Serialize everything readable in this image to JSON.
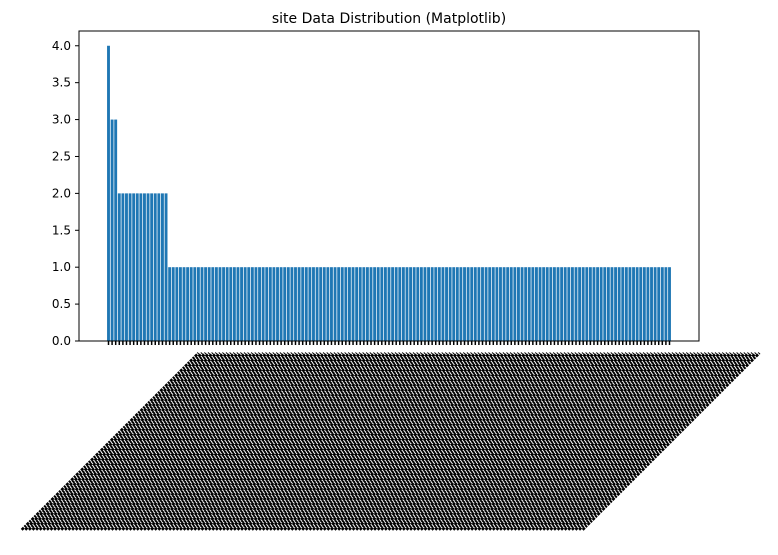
{
  "chart_data": {
    "type": "bar",
    "title": "site Data Distribution (Matplotlib)",
    "xlabel": "",
    "ylabel": "",
    "ylim": [
      0,
      4.2
    ],
    "yticks": [
      "0.0",
      "0.5",
      "1.0",
      "1.5",
      "2.0",
      "2.5",
      "3.0",
      "3.5",
      "4.0"
    ],
    "grid": false,
    "bar_color": "#1f77b4",
    "xtick_labels_rotation": 45,
    "xtick_labels_legible": false,
    "values": [
      4,
      3,
      3,
      2,
      2,
      2,
      2,
      2,
      2,
      2,
      2,
      2,
      2,
      2,
      2,
      2,
      2,
      1,
      1,
      1,
      1,
      1,
      1,
      1,
      1,
      1,
      1,
      1,
      1,
      1,
      1,
      1,
      1,
      1,
      1,
      1,
      1,
      1,
      1,
      1,
      1,
      1,
      1,
      1,
      1,
      1,
      1,
      1,
      1,
      1,
      1,
      1,
      1,
      1,
      1,
      1,
      1,
      1,
      1,
      1,
      1,
      1,
      1,
      1,
      1,
      1,
      1,
      1,
      1,
      1,
      1,
      1,
      1,
      1,
      1,
      1,
      1,
      1,
      1,
      1,
      1,
      1,
      1,
      1,
      1,
      1,
      1,
      1,
      1,
      1,
      1,
      1,
      1,
      1,
      1,
      1,
      1,
      1,
      1,
      1,
      1,
      1,
      1,
      1,
      1,
      1,
      1,
      1,
      1,
      1,
      1,
      1,
      1,
      1,
      1,
      1,
      1,
      1,
      1,
      1,
      1,
      1,
      1,
      1,
      1,
      1,
      1,
      1,
      1,
      1,
      1,
      1,
      1,
      1,
      1,
      1,
      1,
      1,
      1,
      1,
      1,
      1,
      1,
      1,
      1,
      1,
      1,
      1,
      1,
      1,
      1,
      1,
      1,
      1,
      1,
      1,
      1
    ]
  }
}
